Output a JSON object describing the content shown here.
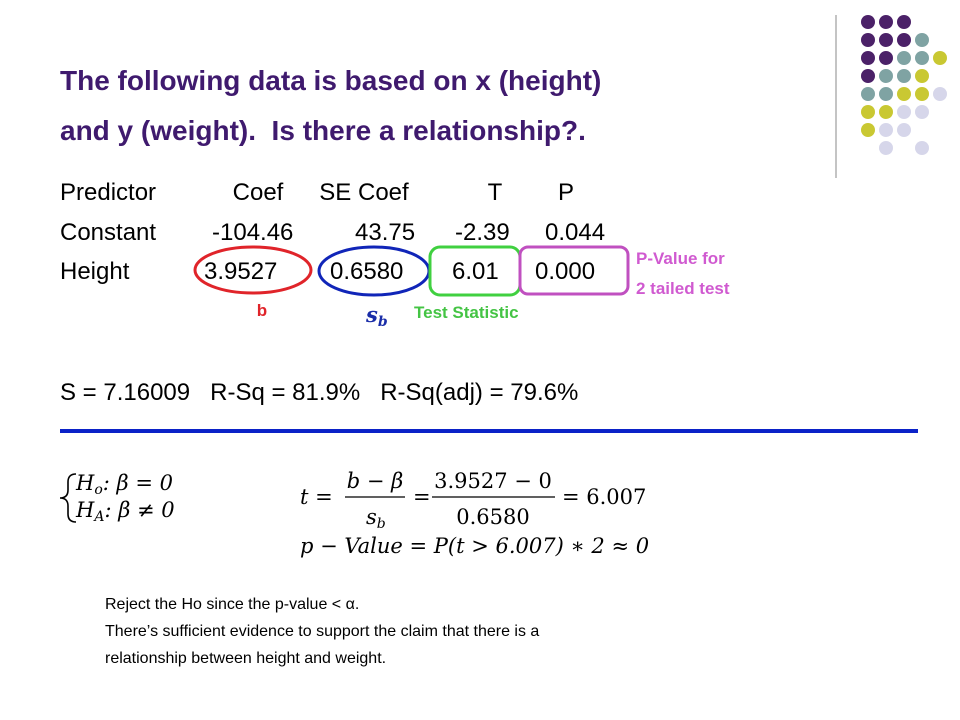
{
  "title": [
    "The following data is based on x (height)",
    "and y (weight).  Is there a relationship?."
  ],
  "table": {
    "header": [
      "Predictor",
      "Coef",
      "SE Coef",
      "T",
      "P"
    ],
    "rows": [
      [
        "Constant",
        "-104.46",
        "43.75",
        "-2.39",
        "0.044"
      ],
      [
        "Height",
        "3.9527",
        "0.6580",
        "6.01",
        "0.000"
      ]
    ]
  },
  "annotations": {
    "b": "b",
    "sb": {
      "symbol": "s",
      "sub": "b"
    },
    "test_statistic": "Test Statistic",
    "p_value": [
      "P-Value for",
      "2 tailed test"
    ]
  },
  "summary": "S = 7.16009   R-Sq = 81.9%   R-Sq(adj) = 79.6%",
  "hypotheses": [
    {
      "symbol": "H",
      "sub": "o",
      "rest": ": β = 0"
    },
    {
      "symbol": "H",
      "sub": "A",
      "rest": ": β ≠ 0"
    }
  ],
  "formula": {
    "t": "t =",
    "num1": "b − β",
    "den1": {
      "symbol": "s",
      "sub": "b"
    },
    "eq": "=",
    "num2": "3.9527 − 0",
    "den2": "0.6580",
    "result": "= 6.007",
    "p_line": "p − Value = P(t > 6.007) ∗ 2 ≈ 0"
  },
  "conclusion": [
    "Reject the Ho since the p-value < α.",
    "There’s sufficient evidence to support the claim that there is a",
    "relationship between height and weight."
  ]
}
